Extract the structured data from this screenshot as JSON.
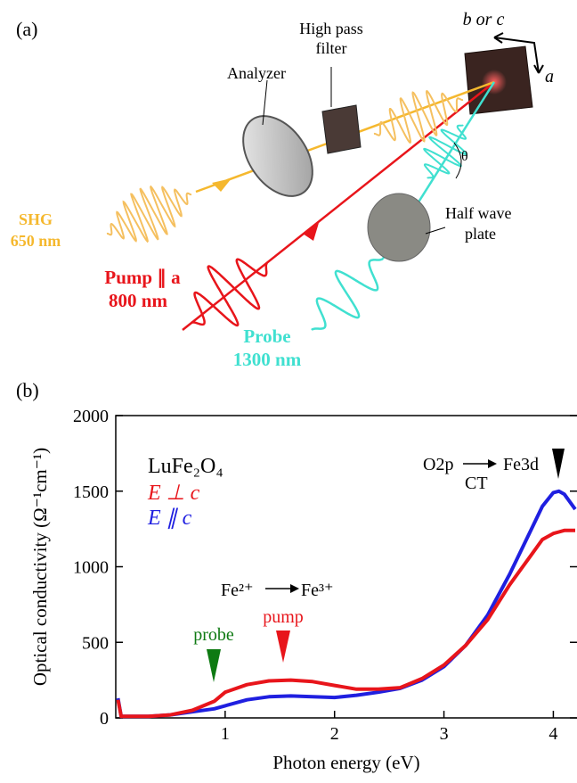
{
  "panel_a": {
    "label": "(a)",
    "high_pass": "High pass",
    "filter": "filter",
    "b_or_c": "b or c",
    "a_axis": "a",
    "analyzer": "Analyzer",
    "theta": "θ",
    "half_wave": "Half wave",
    "plate": "plate",
    "shg": "SHG",
    "shg_wl": "650 nm",
    "pump": "Pump ∥ a",
    "pump_wl": "800 nm",
    "probe": "Probe",
    "probe_wl": "1300 nm"
  },
  "panel_b": {
    "label": "(b)"
  },
  "chart_data": {
    "type": "line",
    "xlabel": "Photon energy (eV)",
    "ylabel": "Optical conductivity (Ω⁻¹cm⁻¹)",
    "annotations": {
      "compound": "LuFe₂O₄",
      "fe_from": "Fe²⁺",
      "fe_to": "Fe³⁺",
      "o2p": "O2p",
      "ct": "CT",
      "fe3d": "Fe3d",
      "probe": "probe",
      "pump": "pump"
    },
    "x": [
      0.02,
      0.05,
      0.3,
      0.5,
      0.7,
      0.9,
      1.0,
      1.2,
      1.4,
      1.6,
      1.8,
      2.0,
      2.2,
      2.4,
      2.6,
      2.8,
      3.0,
      3.2,
      3.4,
      3.6,
      3.8,
      3.9,
      4.0,
      4.05,
      4.1,
      4.2
    ],
    "series": [
      {
        "name": "E ⊥ c",
        "color": "#e8151b",
        "values": [
          120,
          10,
          10,
          20,
          50,
          110,
          170,
          220,
          245,
          250,
          240,
          215,
          190,
          190,
          200,
          260,
          350,
          480,
          650,
          880,
          1080,
          1180,
          1220,
          1230,
          1240,
          1240
        ]
      },
      {
        "name": "E ∥ c",
        "color": "#1f1fe0",
        "values": [
          130,
          10,
          10,
          20,
          40,
          60,
          80,
          120,
          140,
          145,
          140,
          135,
          150,
          170,
          195,
          250,
          340,
          480,
          680,
          950,
          1250,
          1400,
          1490,
          1500,
          1480,
          1380
        ]
      }
    ],
    "xlim": [
      0,
      4.2
    ],
    "ylim": [
      0,
      2000
    ],
    "xticks": [
      1,
      2,
      3,
      4
    ],
    "yticks": [
      0,
      500,
      1000,
      1500,
      2000
    ],
    "legend": "upper left",
    "grid": false
  }
}
